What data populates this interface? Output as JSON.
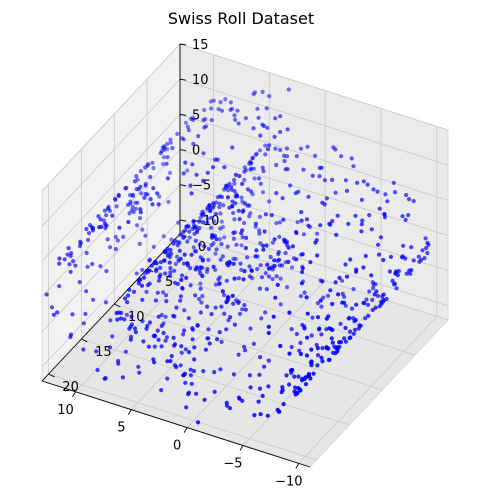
{
  "chart_data": {
    "type": "scatter",
    "projection": "3d",
    "title": "Swiss Roll Dataset",
    "xlabel": "",
    "ylabel": "",
    "zlabel": "",
    "xlim": [
      -11,
      13
    ],
    "ylim": [
      0,
      21
    ],
    "zlim": [
      -12,
      15
    ],
    "x_ticks": [
      -10,
      -5,
      0,
      5,
      10
    ],
    "y_ticks": [
      0,
      5,
      10,
      15,
      20
    ],
    "z_ticks": [
      -10,
      -5,
      0,
      5,
      10,
      15
    ],
    "grid": true,
    "marker_color": "#0000ff",
    "marker": "circle",
    "series": [
      {
        "generator": "swiss_roll",
        "n_points": 1000,
        "t_range": [
          4.71,
          14.14
        ],
        "x_values": "t*cos(t)",
        "y_values": "uniform 0 to 21",
        "z_values": "t*sin(t)"
      }
    ]
  },
  "pane_colors": {
    "back": "#f2f2f2",
    "side": "#ebebeb",
    "floor": "#e6e6e6"
  }
}
